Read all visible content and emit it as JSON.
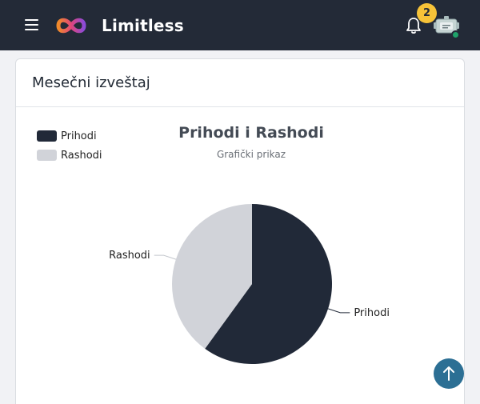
{
  "header": {
    "app_title": "Limitless",
    "notification_count": "2"
  },
  "card": {
    "title": "Mesečni izveštaj"
  },
  "chart_data": {
    "type": "pie",
    "title": "Prihodi i Rashodi",
    "subtitle": "Grafički prikaz",
    "legend_position": "top-left",
    "series": [
      {
        "name": "Prihodi",
        "value": 60,
        "color": "#212938"
      },
      {
        "name": "Rashodi",
        "value": 40,
        "color": "#d1d3d9"
      }
    ]
  },
  "colors": {
    "topbar": "#232a37",
    "badge": "#f7c338",
    "online_status": "#1fa36a",
    "scroll_top": "#2c6f94"
  }
}
